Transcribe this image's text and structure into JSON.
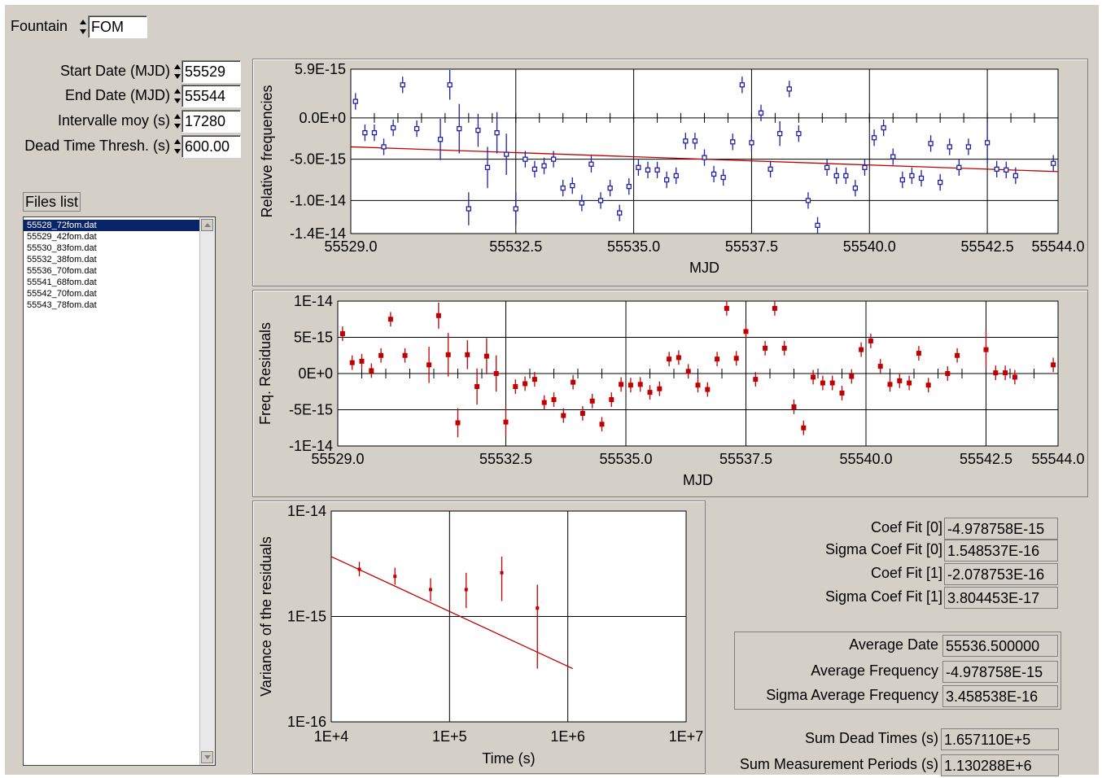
{
  "fountain": {
    "label": "Fountain",
    "value": "FOM"
  },
  "params": [
    {
      "label": "Start Date (MJD)",
      "value": "55529"
    },
    {
      "label": "End Date (MJD)",
      "value": "55544"
    },
    {
      "label": "Intervalle moy (s)",
      "value": "17280"
    },
    {
      "label": "Dead Time Thresh. (s)",
      "value": "600.00"
    }
  ],
  "files": {
    "label": "Files list",
    "items": [
      "55528_72fom.dat",
      "55529_42fom.dat",
      "55530_83fom.dat",
      "55532_38fom.dat",
      "55536_70fom.dat",
      "55541_68fom.dat",
      "55542_70fom.dat",
      "55543_78fom.dat"
    ]
  },
  "fit": [
    {
      "label": "Coef Fit [0]",
      "value": "-4.978758E-15"
    },
    {
      "label": "Sigma Coef Fit [0]",
      "value": "1.548537E-16"
    },
    {
      "label": "Coef Fit [1]",
      "value": "-2.078753E-16"
    },
    {
      "label": "Sigma Coef Fit [1]",
      "value": "3.804453E-17"
    }
  ],
  "averages": [
    {
      "label": "Average Date",
      "value": "55536.500000"
    },
    {
      "label": "Average Frequency",
      "value": "-4.978758E-15"
    },
    {
      "label": "Sigma Average Frequency",
      "value": "3.458538E-16"
    }
  ],
  "sums": [
    {
      "label": "Sum Dead Times (s)",
      "value": "1.657110E+5"
    },
    {
      "label": "Sum Measurement Periods (s)",
      "value": "1.130288E+6"
    }
  ],
  "colors": {
    "panel": "#d4d0c8",
    "blue_points": "#2020a0",
    "red": "#c00000"
  },
  "chart_data": [
    {
      "type": "scatter",
      "xlabel": "MJD",
      "ylabel": "Relative frequencies",
      "xlim": [
        55529.0,
        55544.0
      ],
      "ylim": [
        -1.4e-14,
        5.9e-15
      ],
      "x_ticks": [
        "55529.0",
        "55532.5",
        "55535.0",
        "55537.5",
        "55540.0",
        "55542.5",
        "55544.0"
      ],
      "y_ticks": [
        "5.9E-15",
        "0.0E+0",
        "-5.0E-15",
        "-1.0E-14",
        "-1.4E-14"
      ],
      "fit_line": {
        "x": [
          55529.0,
          55544.0
        ],
        "y": [
          -3.5e-15,
          -6.5e-15
        ]
      },
      "series": [
        {
          "color": "#2020a0",
          "points": [
            [
              55529.1,
              2.0,
              1.0
            ],
            [
              55529.3,
              -1.8,
              1.0
            ],
            [
              55529.5,
              -1.8,
              1.0
            ],
            [
              55529.7,
              -3.5,
              1.0
            ],
            [
              55529.9,
              -1.2,
              1.0
            ],
            [
              55530.1,
              4.0,
              1.0
            ],
            [
              55530.4,
              -1.3,
              1.0
            ],
            [
              55530.9,
              -2.6,
              2.5
            ],
            [
              55531.1,
              4.0,
              1.8
            ],
            [
              55531.3,
              -1.3,
              3.0
            ],
            [
              55531.5,
              -11.0,
              2.0
            ],
            [
              55531.7,
              -1.5,
              2.0
            ],
            [
              55531.9,
              -6.0,
              2.5
            ],
            [
              55532.1,
              -1.8,
              2.5
            ],
            [
              55532.3,
              -4.4,
              2.5
            ],
            [
              55532.5,
              -11.0,
              2.0
            ],
            [
              55532.7,
              -5.0,
              1.0
            ],
            [
              55532.9,
              -6.2,
              1.0
            ],
            [
              55533.1,
              -5.8,
              1.0
            ],
            [
              55533.3,
              -5.0,
              1.0
            ],
            [
              55533.5,
              -8.5,
              1.0
            ],
            [
              55533.7,
              -8.2,
              1.0
            ],
            [
              55533.9,
              -10.3,
              1.0
            ],
            [
              55534.1,
              -5.6,
              1.0
            ],
            [
              55534.3,
              -10.0,
              1.0
            ],
            [
              55534.5,
              -8.5,
              1.0
            ],
            [
              55534.7,
              -11.5,
              1.0
            ],
            [
              55534.9,
              -8.3,
              1.0
            ],
            [
              55535.1,
              -6.0,
              1.0
            ],
            [
              55535.3,
              -6.3,
              1.0
            ],
            [
              55535.5,
              -6.3,
              1.0
            ],
            [
              55535.7,
              -7.5,
              1.0
            ],
            [
              55535.9,
              -7.0,
              1.0
            ],
            [
              55536.1,
              -2.8,
              1.0
            ],
            [
              55536.3,
              -2.8,
              1.0
            ],
            [
              55536.5,
              -4.8,
              1.0
            ],
            [
              55536.7,
              -6.8,
              1.0
            ],
            [
              55536.9,
              -7.2,
              1.0
            ],
            [
              55537.1,
              -2.9,
              1.0
            ],
            [
              55537.3,
              4.0,
              1.0
            ],
            [
              55537.5,
              -3.0,
              1.0
            ],
            [
              55537.7,
              0.6,
              1.0
            ],
            [
              55537.9,
              -6.2,
              1.0
            ],
            [
              55538.1,
              -1.9,
              1.5
            ],
            [
              55538.3,
              3.5,
              1.0
            ],
            [
              55538.5,
              -1.9,
              1.0
            ],
            [
              55538.7,
              -10.0,
              1.0
            ],
            [
              55538.9,
              -13.0,
              1.0
            ],
            [
              55539.1,
              -6.0,
              1.0
            ],
            [
              55539.3,
              -7.0,
              1.0
            ],
            [
              55539.5,
              -7.0,
              1.0
            ],
            [
              55539.7,
              -8.5,
              1.0
            ],
            [
              55539.9,
              -6.0,
              1.0
            ],
            [
              55540.1,
              -2.4,
              1.0
            ],
            [
              55540.3,
              -1.2,
              1.0
            ],
            [
              55540.5,
              -4.7,
              1.0
            ],
            [
              55540.7,
              -7.5,
              1.0
            ],
            [
              55540.9,
              -7.0,
              1.0
            ],
            [
              55541.1,
              -7.3,
              1.0
            ],
            [
              55541.3,
              -3.1,
              1.0
            ],
            [
              55541.5,
              -7.8,
              1.0
            ],
            [
              55541.7,
              -3.5,
              1.0
            ],
            [
              55541.9,
              -6.0,
              1.0
            ],
            [
              55542.1,
              -3.5,
              1.0
            ],
            [
              55542.5,
              -3.0,
              2.5
            ],
            [
              55542.7,
              -6.2,
              1.0
            ],
            [
              55542.9,
              -6.3,
              1.0
            ],
            [
              55543.1,
              -7.0,
              1.0
            ],
            [
              55543.9,
              -5.5,
              1.0
            ]
          ]
        }
      ]
    },
    {
      "type": "scatter",
      "xlabel": "MJD",
      "ylabel": "Freq. Residuals",
      "xlim": [
        55529.0,
        55544.0
      ],
      "ylim": [
        -1e-14,
        1e-14
      ],
      "x_ticks": [
        "55529.0",
        "55532.5",
        "55535.0",
        "55537.5",
        "55540.0",
        "55542.5",
        "55544.0"
      ],
      "y_ticks": [
        "1E-14",
        "5E-15",
        "0E+0",
        "-5E-15",
        "-1E-14"
      ],
      "series": [
        {
          "color": "#c00000",
          "points": [
            [
              55529.1,
              5.5,
              1.0
            ],
            [
              55529.3,
              1.5,
              1.0
            ],
            [
              55529.5,
              1.7,
              1.0
            ],
            [
              55529.7,
              0.4,
              1.0
            ],
            [
              55529.9,
              2.5,
              1.0
            ],
            [
              55530.1,
              7.5,
              1.0
            ],
            [
              55530.4,
              2.5,
              1.0
            ],
            [
              55530.9,
              1.2,
              2.5
            ],
            [
              55531.1,
              8.0,
              1.8
            ],
            [
              55531.3,
              2.6,
              3.0
            ],
            [
              55531.5,
              -6.8,
              2.0
            ],
            [
              55531.7,
              2.6,
              2.0
            ],
            [
              55531.9,
              -1.8,
              2.5
            ],
            [
              55532.1,
              2.4,
              2.5
            ],
            [
              55532.3,
              0.0,
              2.5
            ],
            [
              55532.5,
              -6.7,
              2.0
            ],
            [
              55532.7,
              -1.8,
              1.0
            ],
            [
              55532.9,
              -1.4,
              1.0
            ],
            [
              55533.1,
              -0.8,
              1.0
            ],
            [
              55533.3,
              -4.0,
              1.0
            ],
            [
              55533.5,
              -3.6,
              1.0
            ],
            [
              55533.7,
              -5.8,
              1.0
            ],
            [
              55533.9,
              -1.2,
              1.0
            ],
            [
              55534.1,
              -5.5,
              1.0
            ],
            [
              55534.3,
              -3.8,
              1.0
            ],
            [
              55534.5,
              -7.0,
              1.0
            ],
            [
              55534.7,
              -3.6,
              1.0
            ],
            [
              55534.9,
              -1.5,
              1.0
            ],
            [
              55535.1,
              -1.6,
              1.0
            ],
            [
              55535.3,
              -1.5,
              1.0
            ],
            [
              55535.5,
              -2.6,
              1.0
            ],
            [
              55535.7,
              -2.1,
              1.0
            ],
            [
              55535.9,
              2.0,
              1.0
            ],
            [
              55536.1,
              2.2,
              1.0
            ],
            [
              55536.3,
              0.3,
              1.0
            ],
            [
              55536.5,
              -1.6,
              1.0
            ],
            [
              55536.7,
              -2.2,
              1.0
            ],
            [
              55536.9,
              2.0,
              1.0
            ],
            [
              55537.1,
              9.0,
              1.0
            ],
            [
              55537.3,
              2.1,
              1.0
            ],
            [
              55537.5,
              5.8,
              1.0
            ],
            [
              55537.7,
              -0.8,
              1.0
            ],
            [
              55537.9,
              3.5,
              1.0
            ],
            [
              55538.1,
              9.0,
              1.0
            ],
            [
              55538.3,
              3.5,
              1.0
            ],
            [
              55538.5,
              -4.6,
              1.0
            ],
            [
              55538.7,
              -7.5,
              1.0
            ],
            [
              55538.9,
              -0.5,
              1.0
            ],
            [
              55539.1,
              -1.3,
              1.0
            ],
            [
              55539.3,
              -1.3,
              1.0
            ],
            [
              55539.5,
              -2.7,
              1.0
            ],
            [
              55539.7,
              -0.4,
              1.0
            ],
            [
              55539.9,
              3.3,
              1.0
            ],
            [
              55540.1,
              4.5,
              1.0
            ],
            [
              55540.3,
              1.0,
              1.0
            ],
            [
              55540.5,
              -1.5,
              1.0
            ],
            [
              55540.7,
              -1.0,
              1.0
            ],
            [
              55540.9,
              -1.3,
              1.0
            ],
            [
              55541.1,
              2.8,
              1.0
            ],
            [
              55541.3,
              -1.6,
              1.0
            ],
            [
              55541.7,
              0.0,
              1.0
            ],
            [
              55541.9,
              2.5,
              1.0
            ],
            [
              55542.5,
              3.3,
              2.5
            ],
            [
              55542.7,
              0.1,
              1.0
            ],
            [
              55542.9,
              0.1,
              1.0
            ],
            [
              55543.1,
              -0.5,
              1.0
            ],
            [
              55543.9,
              1.2,
              1.0
            ]
          ]
        }
      ]
    },
    {
      "type": "scatter",
      "xlabel": "Time (s)",
      "ylabel": "Variance of the residuals",
      "xscale": "log",
      "yscale": "log",
      "xlim": [
        10000.0,
        10000000.0
      ],
      "ylim": [
        1e-16,
        1e-14
      ],
      "x_ticks": [
        "1E+4",
        "1E+5",
        "1E+6",
        "1E+7"
      ],
      "y_ticks": [
        "1E-14",
        "1E-15",
        "1E-16"
      ],
      "fit_line": {
        "x": [
          10000.0,
          1100000.0
        ],
        "y": [
          3.7e-15,
          3.2e-16
        ]
      },
      "series": [
        {
          "color": "#c00000",
          "points": [
            [
              17280,
              2.8e-15,
              2.4e-15,
              3.3e-15
            ],
            [
              34560,
              2.4e-15,
              2e-15,
              2.9e-15
            ],
            [
              69120,
              1.8e-15,
              1.4e-15,
              2.3e-15
            ],
            [
              138240,
              1.8e-15,
              1.2e-15,
              2.6e-15
            ],
            [
              276480,
              2.6e-15,
              1.4e-15,
              3.7e-15
            ],
            [
              552960,
              1.2e-15,
              3.2e-16,
              2e-15
            ]
          ]
        }
      ]
    }
  ]
}
